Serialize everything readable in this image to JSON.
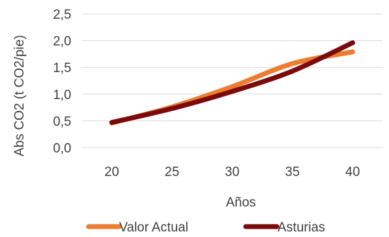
{
  "chart_data": {
    "type": "line",
    "title": "",
    "xlabel": "Años",
    "ylabel": "Abs CO2 (t CO2/pie)",
    "x": [
      20,
      25,
      30,
      35,
      40
    ],
    "x_tick_labels": [
      "20",
      "25",
      "30",
      "35",
      "40"
    ],
    "y_tick_labels": [
      "0,0",
      "0,5",
      "1,0",
      "1,5",
      "2,0",
      "2,5"
    ],
    "ylim": [
      0,
      2.5
    ],
    "grid": true,
    "legend_position": "bottom",
    "series": [
      {
        "name": "Valor Actual",
        "color": "#ED7D31",
        "values": [
          0.46,
          0.76,
          1.14,
          1.57,
          1.79
        ]
      },
      {
        "name": "Asturias",
        "color": "#7B0A0A",
        "values": [
          0.47,
          0.73,
          1.05,
          1.43,
          1.96
        ]
      }
    ]
  }
}
